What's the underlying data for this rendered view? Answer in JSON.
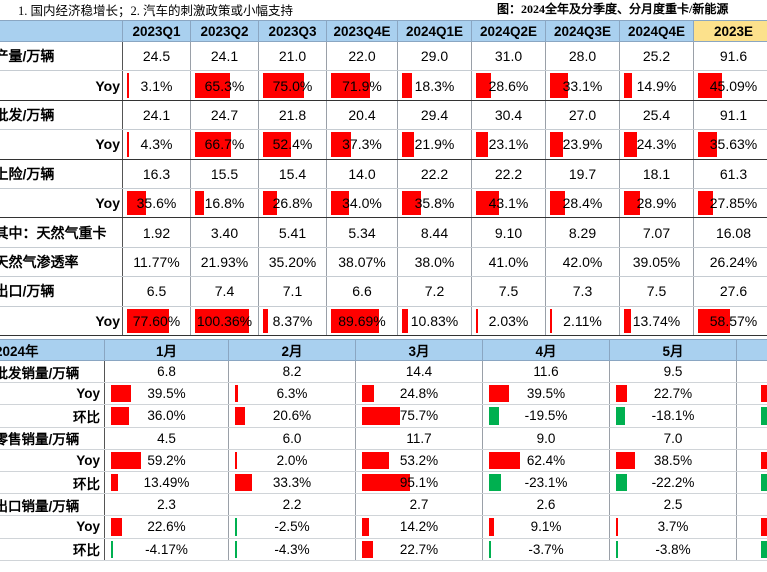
{
  "note": "1. 国内经济稳增长；2. 汽车的刺激政策或小幅支持",
  "figure_title": "图：2024全年及分季度、分月度重卡/新能源",
  "colors": {
    "header": "#a9d0ef",
    "highlight": "#fce18c",
    "positive_bar": "#ff0000",
    "negative_bar": "#00b050"
  },
  "quarterly": {
    "columns": [
      "2023Q1",
      "2023Q2",
      "2023Q3",
      "2023Q4E",
      "2024Q1E",
      "2024Q2E",
      "2024Q3E",
      "2024Q4E",
      "2023E"
    ],
    "rows": [
      {
        "label": "产量/万辆",
        "values": [
          "24.5",
          "24.1",
          "21.0",
          "22.0",
          "29.0",
          "31.0",
          "28.0",
          "25.2",
          "91.6"
        ]
      },
      {
        "label": "Yoy",
        "sub": true,
        "values": [
          "3.1%",
          "65.3%",
          "75.0%",
          "71.9%",
          "18.3%",
          "28.6%",
          "33.1%",
          "14.9%",
          "45.09%"
        ],
        "bars": [
          0.031,
          0.653,
          0.75,
          0.719,
          0.183,
          0.286,
          0.331,
          0.149,
          0.4509
        ]
      },
      {
        "label": "批发/万辆",
        "values": [
          "24.1",
          "24.7",
          "21.8",
          "20.4",
          "29.4",
          "30.4",
          "27.0",
          "25.4",
          "91.1"
        ]
      },
      {
        "label": "Yoy",
        "sub": true,
        "values": [
          "4.3%",
          "66.7%",
          "52.4%",
          "37.3%",
          "21.9%",
          "23.1%",
          "23.9%",
          "24.3%",
          "35.63%"
        ],
        "bars": [
          0.043,
          0.667,
          0.524,
          0.373,
          0.219,
          0.231,
          0.239,
          0.243,
          0.3563
        ]
      },
      {
        "label": "上险/万辆",
        "values": [
          "16.3",
          "15.5",
          "15.4",
          "14.0",
          "22.2",
          "22.2",
          "19.7",
          "18.1",
          "61.3"
        ]
      },
      {
        "label": "Yoy",
        "sub": true,
        "values": [
          "35.6%",
          "16.8%",
          "26.8%",
          "34.0%",
          "35.8%",
          "43.1%",
          "28.4%",
          "28.9%",
          "27.85%"
        ],
        "bars": [
          0.356,
          0.168,
          0.268,
          0.34,
          0.358,
          0.431,
          0.284,
          0.289,
          0.2785
        ]
      },
      {
        "label": "其中：天然气重卡",
        "values": [
          "1.92",
          "3.40",
          "5.41",
          "5.34",
          "8.44",
          "9.10",
          "8.29",
          "7.07",
          "16.08"
        ]
      },
      {
        "label": "天然气渗透率",
        "values": [
          "11.77%",
          "21.93%",
          "35.20%",
          "38.07%",
          "38.0%",
          "41.0%",
          "42.0%",
          "39.05%",
          "26.24%"
        ]
      },
      {
        "label": "出口/万辆",
        "values": [
          "6.5",
          "7.4",
          "7.1",
          "6.6",
          "7.2",
          "7.5",
          "7.3",
          "7.5",
          "27.6"
        ]
      },
      {
        "label": "Yoy",
        "sub": true,
        "values": [
          "77.60%",
          "100.36%",
          "8.37%",
          "89.69%",
          "10.83%",
          "2.03%",
          "2.11%",
          "13.74%",
          "58.57%"
        ],
        "bars": [
          0.776,
          1.0036,
          0.0837,
          0.8969,
          0.1083,
          0.0203,
          0.0211,
          0.1374,
          0.5857
        ]
      }
    ]
  },
  "monthly": {
    "corner": "2024年",
    "columns": [
      "1月",
      "2月",
      "3月",
      "4月",
      "5月"
    ],
    "rows": [
      {
        "label": "批发销量/万辆",
        "values": [
          "6.8",
          "8.2",
          "14.4",
          "11.6",
          "9.5"
        ]
      },
      {
        "label": "Yoy",
        "sub": true,
        "values": [
          "39.5%",
          "6.3%",
          "24.8%",
          "39.5%",
          "22.7%"
        ],
        "bars": [
          0.395,
          0.063,
          0.248,
          0.395,
          0.227
        ]
      },
      {
        "label": "环比",
        "sub": true,
        "values": [
          "36.0%",
          "20.6%",
          "75.7%",
          "-19.5%",
          "-18.1%"
        ],
        "bars": [
          0.36,
          0.206,
          0.757,
          -0.195,
          -0.181
        ]
      },
      {
        "label": "零售销量/万辆",
        "values": [
          "4.5",
          "6.0",
          "11.7",
          "9.0",
          "7.0"
        ]
      },
      {
        "label": "Yoy",
        "sub": true,
        "values": [
          "59.2%",
          "2.0%",
          "53.2%",
          "62.4%",
          "38.5%"
        ],
        "bars": [
          0.592,
          0.02,
          0.532,
          0.624,
          0.385
        ]
      },
      {
        "label": "环比",
        "sub": true,
        "values": [
          "13.49%",
          "33.3%",
          "95.1%",
          "-23.1%",
          "-22.2%"
        ],
        "bars": [
          0.1349,
          0.333,
          0.951,
          -0.231,
          -0.222
        ]
      },
      {
        "label": "出口销量/万辆",
        "values": [
          "2.3",
          "2.2",
          "2.7",
          "2.6",
          "2.5"
        ]
      },
      {
        "label": "Yoy",
        "sub": true,
        "values": [
          "22.6%",
          "-2.5%",
          "14.2%",
          "9.1%",
          "3.7%"
        ],
        "bars": [
          0.226,
          -0.025,
          0.142,
          0.091,
          0.037
        ]
      },
      {
        "label": "环比",
        "sub": true,
        "values": [
          "-4.17%",
          "-4.3%",
          "22.7%",
          "-3.7%",
          "-3.8%"
        ],
        "bars": [
          -0.0417,
          -0.043,
          0.227,
          -0.037,
          -0.038
        ]
      }
    ]
  }
}
